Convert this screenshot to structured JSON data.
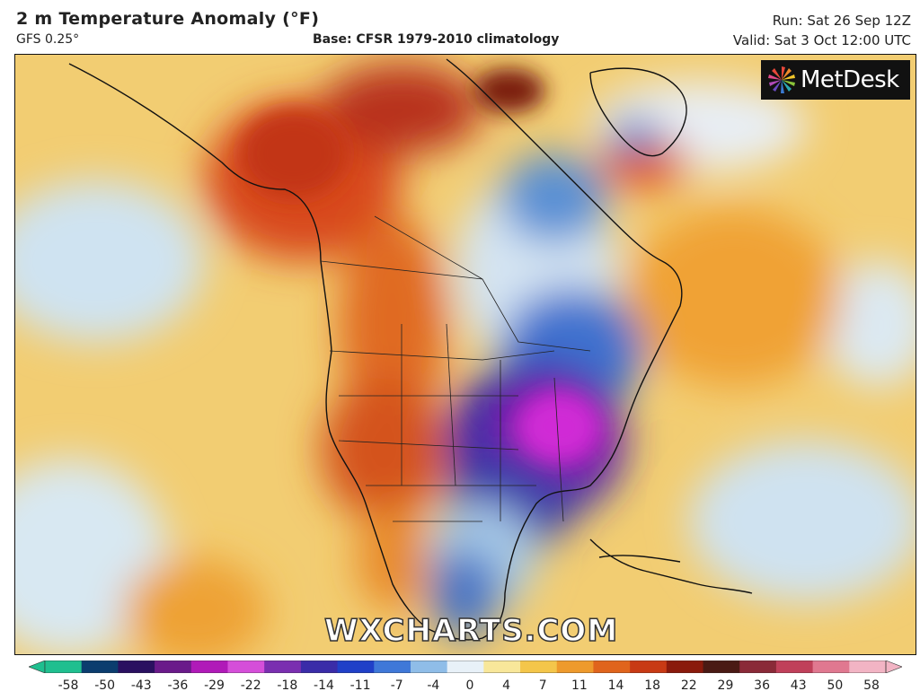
{
  "header": {
    "title": "2 m Temperature Anomaly (°F)",
    "model": "GFS 0.25°",
    "base": "Base: CFSR 1979-2010 climatology",
    "run": "Run: Sat 26 Sep 12Z",
    "valid": "Valid: Sat 3 Oct 12:00 UTC"
  },
  "logo": {
    "text": "MetDesk"
  },
  "watermark": "WXCHARTS.COM",
  "legend": {
    "ticks": [
      "-58",
      "-50",
      "-43",
      "-36",
      "-29",
      "-22",
      "-18",
      "-14",
      "-11",
      "-7",
      "-4",
      "0",
      "4",
      "7",
      "11",
      "14",
      "18",
      "22",
      "29",
      "36",
      "43",
      "50",
      "58"
    ],
    "colors": [
      "#1fbf8f",
      "#0b3d6e",
      "#2a1060",
      "#6a1a8a",
      "#b01ab8",
      "#d54fd9",
      "#7a2fb0",
      "#3a2ca8",
      "#2040c8",
      "#3f78d8",
      "#8fbde8",
      "#e8f1f8",
      "#f8e79a",
      "#f4c64a",
      "#ee9a2c",
      "#e0641c",
      "#c83a14",
      "#8a1a0c",
      "#4a1a14",
      "#8a2a38",
      "#c0405a",
      "#e07890",
      "#f2b4c4"
    ]
  }
}
